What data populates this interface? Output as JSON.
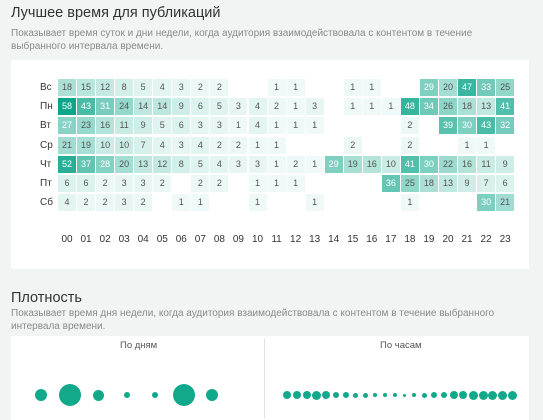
{
  "colors": {
    "accent": "#12a98b",
    "panel": "#ffffff",
    "background": "#f2f3f3"
  },
  "publishing": {
    "title": "Лучшее время для публикаций",
    "description_line1": "Показывает время суток и дни недели, когда аудитория взаимодействовала с контентом в течение",
    "description_line2": "выбранного интервала времени."
  },
  "chart_data": {
    "type": "heatmap",
    "days": [
      "Вс",
      "Пн",
      "Вт",
      "Ср",
      "Чт",
      "Пт",
      "Сб"
    ],
    "hours": [
      "00",
      "01",
      "02",
      "03",
      "04",
      "05",
      "06",
      "07",
      "08",
      "09",
      "10",
      "11",
      "12",
      "13",
      "14",
      "15",
      "16",
      "17",
      "18",
      "19",
      "20",
      "21",
      "22",
      "23"
    ],
    "values": [
      [
        18,
        15,
        12,
        8,
        5,
        4,
        3,
        2,
        2,
        "",
        "",
        1,
        1,
        "",
        "",
        1,
        1,
        "",
        "",
        29,
        20,
        47,
        33,
        25
      ],
      [
        58,
        43,
        31,
        24,
        14,
        14,
        9,
        6,
        5,
        3,
        4,
        2,
        1,
        3,
        "",
        1,
        1,
        1,
        48,
        34,
        26,
        18,
        13,
        41
      ],
      [
        27,
        23,
        16,
        11,
        9,
        5,
        6,
        3,
        3,
        1,
        4,
        1,
        1,
        1,
        "",
        "",
        "",
        "",
        2,
        "",
        39,
        30,
        43,
        32
      ],
      [
        21,
        19,
        10,
        10,
        7,
        4,
        3,
        4,
        2,
        2,
        1,
        1,
        "",
        "",
        "",
        2,
        "",
        "",
        2,
        "",
        "",
        1,
        1,
        ""
      ],
      [
        52,
        37,
        28,
        20,
        13,
        12,
        8,
        5,
        4,
        3,
        3,
        1,
        2,
        1,
        29,
        19,
        16,
        10,
        41,
        30,
        22,
        16,
        11,
        9
      ],
      [
        6,
        6,
        2,
        3,
        3,
        2,
        "",
        2,
        2,
        "",
        1,
        1,
        1,
        "",
        "",
        "",
        "",
        36,
        25,
        18,
        13,
        9,
        7,
        6
      ],
      [
        4,
        2,
        2,
        3,
        2,
        "",
        1,
        1,
        "",
        "",
        1,
        "",
        "",
        1,
        "",
        "",
        "",
        "",
        1,
        "",
        "",
        "",
        30,
        21
      ]
    ]
  },
  "density": {
    "title": "Плотность",
    "description_line1": "Показывает время дня недели, когда аудитория взаимодействовала с контентом в течение выбранного",
    "description_line2": "интервала времени.",
    "by_days_label": "По дням",
    "by_hours_label": "По часам",
    "by_days": [
      12,
      22,
      11,
      6,
      6,
      22,
      12
    ],
    "by_hours": [
      8,
      8,
      8,
      9,
      8,
      6,
      6,
      5,
      5,
      4,
      4,
      4,
      3,
      4,
      5,
      6,
      6,
      8,
      8,
      9,
      9,
      9,
      9,
      9
    ]
  }
}
